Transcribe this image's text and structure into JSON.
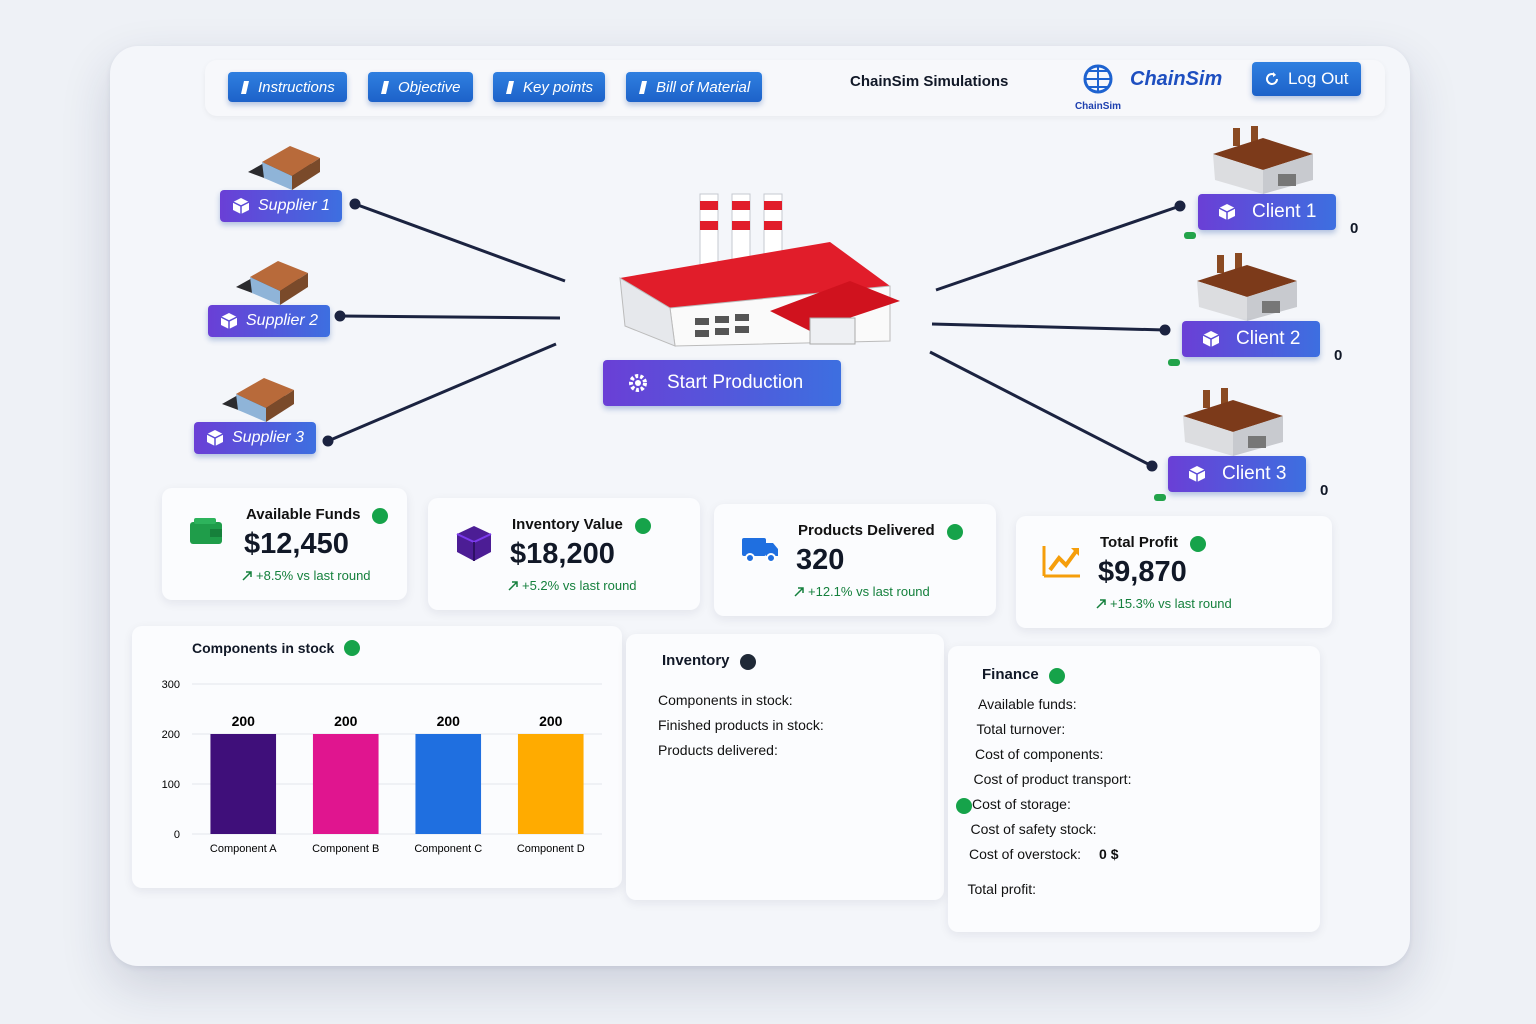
{
  "nav": {
    "buttons": [
      "Instructions",
      "Objective",
      "Key points",
      "Bill of Material"
    ]
  },
  "header": {
    "title": "ChainSim Simulations",
    "logo_name": "ChainSim",
    "logo_caption": "ChainSim",
    "logout": "Log Out"
  },
  "network": {
    "suppliers": [
      "Supplier 1",
      "Supplier 2",
      "Supplier 3"
    ],
    "clients": [
      {
        "label": "Client 1",
        "count": 0
      },
      {
        "label": "Client 2",
        "count": 0
      },
      {
        "label": "Client 3",
        "count": 0
      }
    ],
    "action": "Start Production"
  },
  "kpis": [
    {
      "label": "Available Funds",
      "value": "$12,450",
      "change": "+8.5% vs last round"
    },
    {
      "label": "Inventory Value",
      "value": "$18,200",
      "change": "+5.2% vs last round"
    },
    {
      "label": "Products Delivered",
      "value": "320",
      "change": "+12.1% vs last round"
    },
    {
      "label": "Total Profit",
      "value": "$9,870",
      "change": "+15.3% vs last round"
    }
  ],
  "chart_data": {
    "type": "bar",
    "title": "Components in stock",
    "categories": [
      "Component A",
      "Component B",
      "Component C",
      "Component D"
    ],
    "values": [
      200,
      200,
      200,
      200
    ],
    "colors": [
      "#3f0f7a",
      "#e0158f",
      "#1f6fe0",
      "#ffab00"
    ],
    "ylim": [
      0,
      300
    ],
    "yticks": [
      0,
      100,
      200,
      300
    ],
    "grid": true,
    "data_labels": true
  },
  "inventory": {
    "title": "Inventory",
    "items": [
      "Components in stock:",
      "Finished products in stock:",
      "Products delivered:"
    ]
  },
  "finance": {
    "title": "Finance",
    "items": [
      "Available funds:",
      "Total turnover:",
      "Cost of components:",
      "Cost of product transport:",
      "Cost of storage:",
      "Cost of safety stock:",
      "Cost of overstock:",
      "Total profit:"
    ],
    "overstock_value": "0 $"
  }
}
